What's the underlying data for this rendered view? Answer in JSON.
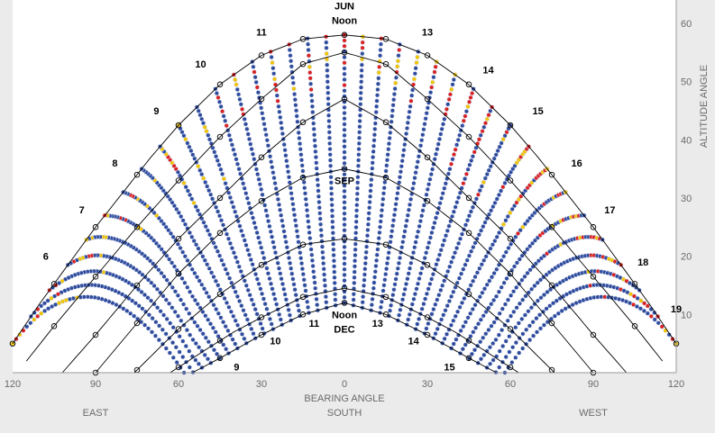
{
  "chart_data": {
    "type": "scatter",
    "title": "",
    "xlabel": "BEARING ANGLE",
    "ylabel": "ALTITUDE ANGLE",
    "xlim": [
      -120,
      120
    ],
    "ylim": [
      0,
      64
    ],
    "x_tick_values": [
      -120,
      -90,
      -60,
      -30,
      0,
      30,
      60,
      90,
      120
    ],
    "x_tick_labels": [
      "120",
      "90",
      "60",
      "30",
      "0",
      "30",
      "60",
      "90",
      "120"
    ],
    "y_ticks": [
      10,
      20,
      30,
      40,
      50,
      60
    ],
    "direction_labels": [
      {
        "text": "EAST",
        "x": -90
      },
      {
        "text": "SOUTH",
        "x": 0
      },
      {
        "text": "WEST",
        "x": 90
      }
    ],
    "grid": false,
    "sun_paths": [
      {
        "label": "JUN",
        "x": [
          -120,
          -110,
          -100,
          -90,
          -80,
          -70,
          -60,
          -45,
          -30,
          -15,
          0,
          15,
          30,
          45,
          60,
          70,
          80,
          90,
          100,
          110,
          120
        ],
        "y": [
          5,
          12,
          18.5,
          25,
          31,
          37,
          42.5,
          49.5,
          54.5,
          57.3,
          58,
          57.3,
          54.5,
          49.5,
          42.5,
          37,
          31,
          25,
          18.5,
          12,
          5
        ]
      },
      {
        "label": "",
        "x": [
          -115,
          -105,
          -90,
          -75,
          -60,
          -45,
          -30,
          -15,
          0,
          15,
          30,
          45,
          60,
          75,
          90,
          105,
          115
        ],
        "y": [
          2,
          8,
          16.5,
          25,
          33,
          40.5,
          47,
          53,
          55,
          53,
          47,
          40.5,
          33,
          25,
          16.5,
          8,
          2
        ],
        "y_peak": 55
      },
      {
        "label": "",
        "x": [
          -102,
          -90,
          -75,
          -60,
          -45,
          -30,
          -15,
          0,
          15,
          30,
          45,
          60,
          75,
          90,
          102
        ],
        "y": [
          0,
          6.5,
          15,
          23,
          30,
          37,
          43,
          47,
          43,
          37,
          30,
          23,
          15,
          6.5,
          0
        ]
      },
      {
        "label": "SEP",
        "x": [
          -90,
          -75,
          -60,
          -45,
          -30,
          -15,
          0,
          15,
          30,
          45,
          60,
          75,
          90
        ],
        "y": [
          0,
          8.5,
          17,
          24,
          29.5,
          33.5,
          35,
          33.5,
          29.5,
          24,
          17,
          8.5,
          0
        ]
      },
      {
        "label": "",
        "x": [
          -76,
          -60,
          -45,
          -30,
          -15,
          0,
          15,
          30,
          45,
          60,
          76
        ],
        "y": [
          0,
          7.5,
          13.5,
          18.5,
          22,
          23,
          22,
          18.5,
          13.5,
          7.5,
          0
        ]
      },
      {
        "label": "",
        "x": [
          -63,
          -50,
          -40,
          -30,
          -15,
          0,
          15,
          30,
          40,
          50,
          63
        ],
        "y": [
          0,
          4,
          7,
          9.5,
          13,
          14.5,
          13,
          9.5,
          7,
          4,
          0
        ]
      },
      {
        "label": "DEC",
        "x": [
          -55,
          -45,
          -30,
          -15,
          0,
          15,
          30,
          45,
          55
        ],
        "y": [
          0,
          2.5,
          6.5,
          10,
          12,
          10,
          6.5,
          2.5,
          0
        ]
      }
    ],
    "hour_labels": [
      {
        "text": "6",
        "x": -108,
        "y": 20
      },
      {
        "text": "7",
        "x": -95,
        "y": 28
      },
      {
        "text": "8",
        "x": -83,
        "y": 36
      },
      {
        "text": "9",
        "x": -68,
        "y": 45
      },
      {
        "text": "10",
        "x": -52,
        "y": 53
      },
      {
        "text": "11",
        "x": -30,
        "y": 58.5
      },
      {
        "text": "13",
        "x": 30,
        "y": 58.5
      },
      {
        "text": "14",
        "x": 52,
        "y": 52
      },
      {
        "text": "15",
        "x": 70,
        "y": 45
      },
      {
        "text": "16",
        "x": 84,
        "y": 36
      },
      {
        "text": "17",
        "x": 96,
        "y": 28
      },
      {
        "text": "18",
        "x": 108,
        "y": 19
      },
      {
        "text": "19",
        "x": 120,
        "y": 11
      },
      {
        "text": "11",
        "x": -11,
        "y": 8.5
      },
      {
        "text": "13",
        "x": 12,
        "y": 8.5
      },
      {
        "text": "10",
        "x": -25,
        "y": 5.5
      },
      {
        "text": "14",
        "x": 25,
        "y": 5.5
      },
      {
        "text": "9",
        "x": -39,
        "y": 1
      },
      {
        "text": "15",
        "x": 38,
        "y": 1
      }
    ],
    "annotations": [
      {
        "text": "JUN",
        "x": 0,
        "y": 63
      },
      {
        "text": "Noon",
        "x": 0,
        "y": 60.5
      },
      {
        "text": "SEP",
        "x": 0,
        "y": 33
      },
      {
        "text": "Noon",
        "x": 0,
        "y": 10
      },
      {
        "text": "DEC",
        "x": 0,
        "y": 7.5
      }
    ],
    "colors": {
      "shaded": "#2f4b9e",
      "partial": "#f2c500",
      "sunlit": "#dd2020",
      "point_edge": "#cfd8ea",
      "background": "#ffffff",
      "frame": "#ebebeb",
      "path_line": "#000000",
      "text": "#000000",
      "axis_text": "#6a6a6a"
    },
    "series": [
      {
        "name": "",
        "color": "#2f4b9e"
      },
      {
        "name": "",
        "color": "#f2c500"
      },
      {
        "name": "",
        "color": "#dd2020"
      }
    ]
  }
}
